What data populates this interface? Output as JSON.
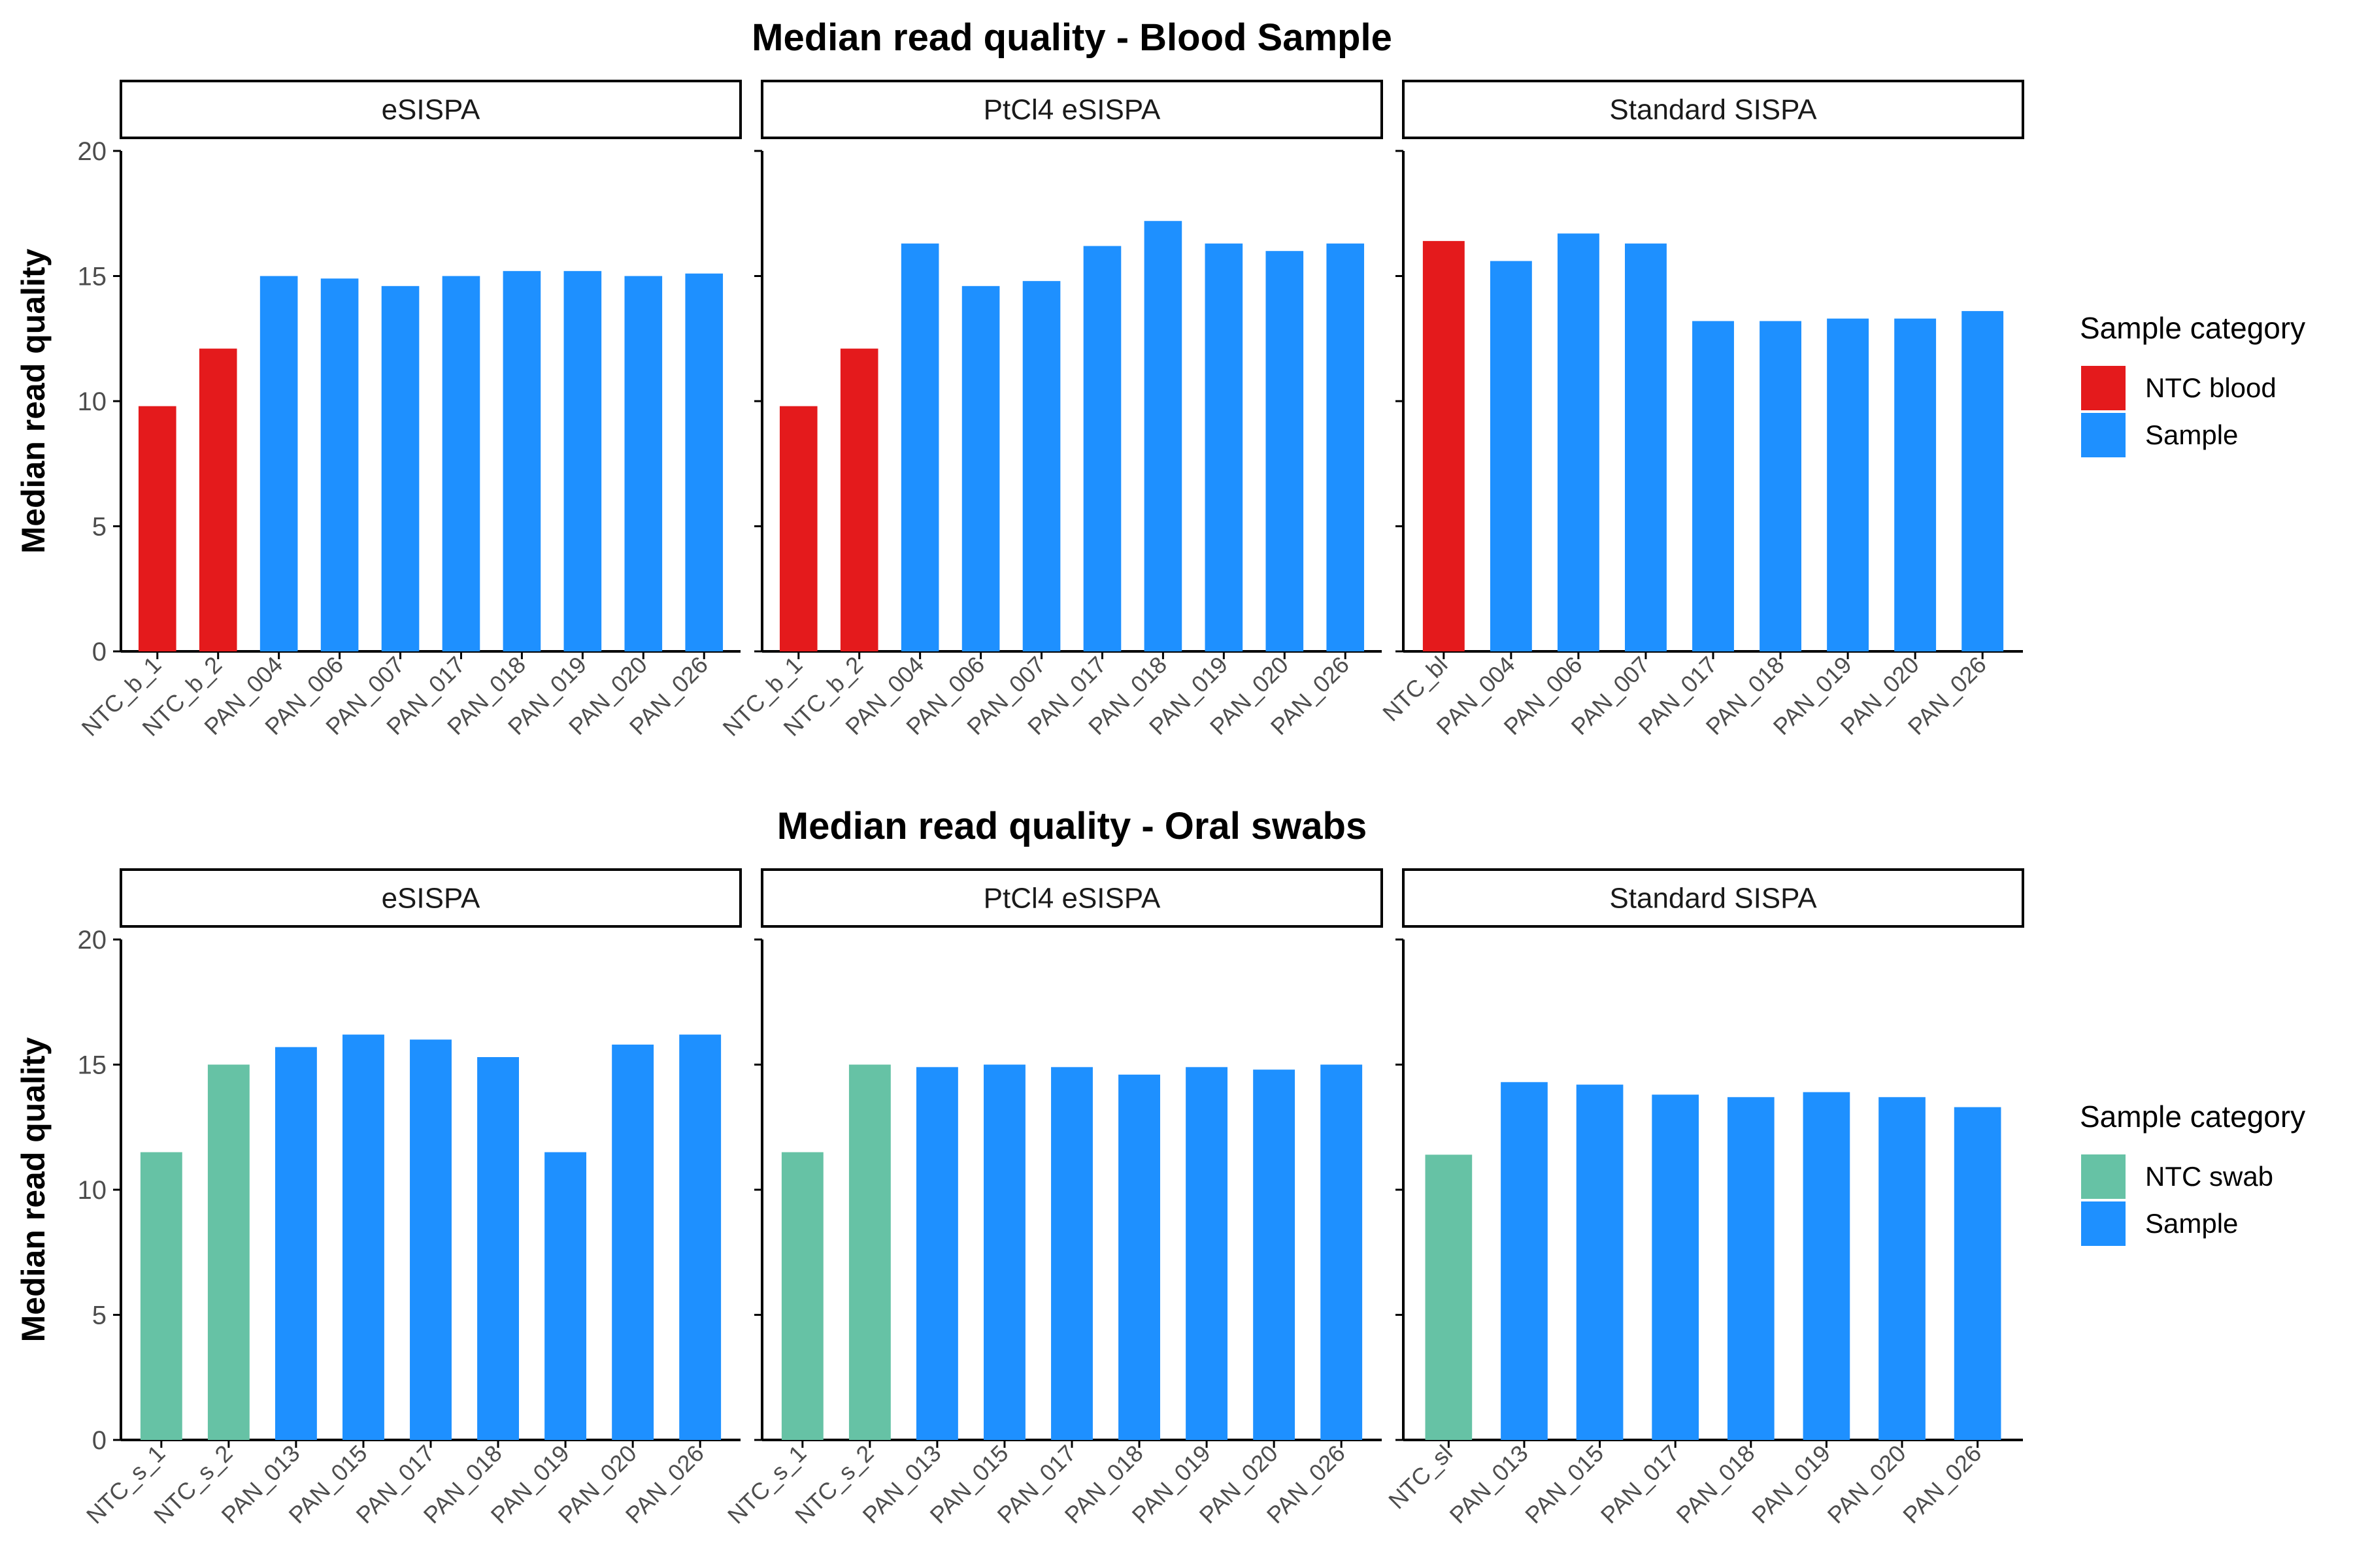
{
  "colors": {
    "ntc_blood": "#e41a1c",
    "ntc_swab": "#66c2a5",
    "sample": "#1e90ff",
    "axis": "#000000",
    "tick_text": "#4d4d4d"
  },
  "chart_data": [
    {
      "type": "bar",
      "title": "Median read quality - Blood Sample",
      "ylabel": "Median read quality",
      "ylim": [
        0,
        20
      ],
      "yticks": [
        0,
        5,
        10,
        15,
        20
      ],
      "grid": false,
      "legend_position": "right",
      "legend": {
        "title": "Sample category",
        "entries": [
          {
            "label": "NTC blood",
            "color_key": "ntc_blood"
          },
          {
            "label": "Sample",
            "color_key": "sample"
          }
        ]
      },
      "facets": [
        {
          "label": "eSISPA",
          "categories": [
            "NTC_b_1",
            "NTC_b_2",
            "PAN_004",
            "PAN_006",
            "PAN_007",
            "PAN_017",
            "PAN_018",
            "PAN_019",
            "PAN_020",
            "PAN_026"
          ],
          "values": [
            9.8,
            12.1,
            15.0,
            14.9,
            14.6,
            15.0,
            15.2,
            15.2,
            15.0,
            15.1
          ],
          "groups": [
            "NTC blood",
            "NTC blood",
            "Sample",
            "Sample",
            "Sample",
            "Sample",
            "Sample",
            "Sample",
            "Sample",
            "Sample"
          ]
        },
        {
          "label": "PtCl4 eSISPA",
          "categories": [
            "NTC_b_1",
            "NTC_b_2",
            "PAN_004",
            "PAN_006",
            "PAN_007",
            "PAN_017",
            "PAN_018",
            "PAN_019",
            "PAN_020",
            "PAN_026"
          ],
          "values": [
            9.8,
            12.1,
            16.3,
            14.6,
            14.8,
            16.2,
            17.2,
            16.3,
            16.0,
            16.3
          ],
          "groups": [
            "NTC blood",
            "NTC blood",
            "Sample",
            "Sample",
            "Sample",
            "Sample",
            "Sample",
            "Sample",
            "Sample",
            "Sample"
          ]
        },
        {
          "label": "Standard SISPA",
          "categories": [
            "NTC_bl",
            "PAN_004",
            "PAN_006",
            "PAN_007",
            "PAN_017",
            "PAN_018",
            "PAN_019",
            "PAN_020",
            "PAN_026"
          ],
          "values": [
            16.4,
            15.6,
            16.7,
            16.3,
            13.2,
            13.2,
            13.3,
            13.3,
            13.6
          ],
          "groups": [
            "NTC blood",
            "Sample",
            "Sample",
            "Sample",
            "Sample",
            "Sample",
            "Sample",
            "Sample",
            "Sample"
          ]
        }
      ]
    },
    {
      "type": "bar",
      "title": "Median read quality - Oral swabs",
      "ylabel": "Median read quality",
      "ylim": [
        0,
        20
      ],
      "yticks": [
        0,
        5,
        10,
        15,
        20
      ],
      "grid": false,
      "legend_position": "right",
      "legend": {
        "title": "Sample category",
        "entries": [
          {
            "label": "NTC swab",
            "color_key": "ntc_swab"
          },
          {
            "label": "Sample",
            "color_key": "sample"
          }
        ]
      },
      "facets": [
        {
          "label": "eSISPA",
          "categories": [
            "NTC_s_1",
            "NTC_s_2",
            "PAN_013",
            "PAN_015",
            "PAN_017",
            "PAN_018",
            "PAN_019",
            "PAN_020",
            "PAN_026"
          ],
          "values": [
            11.5,
            15.0,
            15.7,
            16.2,
            16.0,
            15.3,
            11.5,
            15.8,
            16.2
          ],
          "groups": [
            "NTC swab",
            "NTC swab",
            "Sample",
            "Sample",
            "Sample",
            "Sample",
            "Sample",
            "Sample",
            "Sample"
          ]
        },
        {
          "label": "PtCl4 eSISPA",
          "categories": [
            "NTC_s_1",
            "NTC_s_2",
            "PAN_013",
            "PAN_015",
            "PAN_017",
            "PAN_018",
            "PAN_019",
            "PAN_020",
            "PAN_026"
          ],
          "values": [
            11.5,
            15.0,
            14.9,
            15.0,
            14.9,
            14.6,
            14.9,
            14.8,
            15.0
          ],
          "groups": [
            "NTC swab",
            "NTC swab",
            "Sample",
            "Sample",
            "Sample",
            "Sample",
            "Sample",
            "Sample",
            "Sample"
          ]
        },
        {
          "label": "Standard SISPA",
          "categories": [
            "NTC_sl",
            "PAN_013",
            "PAN_015",
            "PAN_017",
            "PAN_018",
            "PAN_019",
            "PAN_020",
            "PAN_026"
          ],
          "values": [
            11.4,
            14.3,
            14.2,
            13.8,
            13.7,
            13.9,
            13.7,
            13.3
          ],
          "groups": [
            "NTC swab",
            "Sample",
            "Sample",
            "Sample",
            "Sample",
            "Sample",
            "Sample",
            "Sample"
          ]
        }
      ]
    }
  ]
}
